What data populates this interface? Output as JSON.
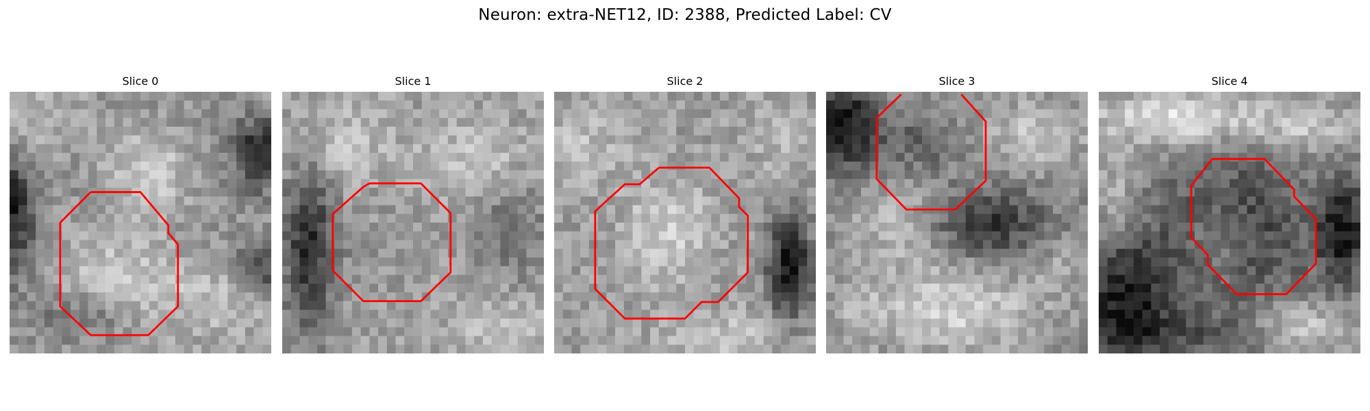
{
  "figure": {
    "title": "Neuron: extra-NET12, ID: 2388, Predicted Label: CV"
  },
  "colors": {
    "outline": "#ff0000",
    "background": "#ffffff"
  },
  "panels": [
    {
      "title": "Slice 0"
    },
    {
      "title": "Slice 1"
    },
    {
      "title": "Slice 2"
    },
    {
      "title": "Slice 3"
    },
    {
      "title": "Slice 4"
    }
  ]
}
